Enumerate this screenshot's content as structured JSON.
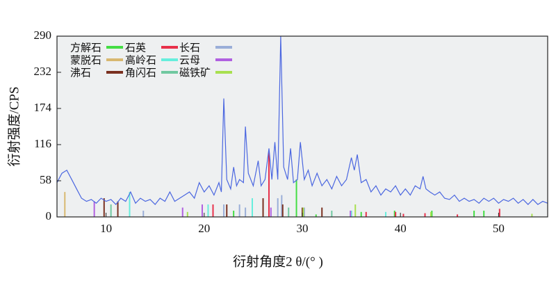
{
  "chart_data": {
    "type": "line",
    "x_label": "衍射角度2 θ/(° )",
    "y_label": "衍射强度/CPS",
    "xlim": [
      5,
      55
    ],
    "ylim": [
      0,
      290
    ],
    "xticks": [
      10,
      20,
      30,
      40,
      50
    ],
    "yticks": [
      0,
      58,
      116,
      174,
      232,
      290
    ],
    "line": {
      "color": "#4a66e0",
      "x": [
        5,
        5.5,
        6,
        6.5,
        7,
        7.5,
        8,
        8.5,
        9,
        9.5,
        10,
        10.5,
        11,
        11.5,
        12,
        12.5,
        13,
        13.5,
        14,
        14.5,
        15,
        15.5,
        16,
        16.5,
        17,
        17.5,
        18,
        18.5,
        19,
        19.5,
        20,
        20.5,
        21,
        21.5,
        21.75,
        22,
        22.3,
        22.7,
        23,
        23.3,
        23.6,
        24,
        24.2,
        24.5,
        25,
        25.5,
        25.8,
        26.2,
        26.6,
        26.9,
        27.2,
        27.5,
        27.8,
        28.1,
        28.5,
        28.8,
        29.1,
        29.5,
        29.8,
        30.2,
        30.6,
        31,
        31.5,
        32,
        32.5,
        33,
        33.5,
        34,
        34.5,
        35,
        35.3,
        35.6,
        36,
        36.5,
        37,
        37.5,
        38,
        38.5,
        39,
        39.5,
        40,
        40.5,
        41,
        41.5,
        42,
        42.3,
        42.6,
        43,
        43.5,
        44,
        44.5,
        45,
        45.5,
        46,
        46.5,
        47,
        47.5,
        48,
        48.5,
        49,
        49.5,
        50,
        50.5,
        51,
        51.5,
        52,
        52.5,
        53,
        53.5,
        54,
        54.5,
        55
      ],
      "values": [
        55,
        70,
        75,
        60,
        45,
        30,
        25,
        28,
        22,
        30,
        25,
        28,
        20,
        30,
        25,
        40,
        22,
        30,
        25,
        28,
        20,
        30,
        25,
        40,
        25,
        30,
        35,
        40,
        30,
        55,
        40,
        50,
        35,
        55,
        40,
        190,
        60,
        45,
        80,
        50,
        60,
        55,
        145,
        70,
        50,
        90,
        50,
        60,
        110,
        60,
        120,
        60,
        290,
        80,
        60,
        110,
        55,
        60,
        120,
        60,
        75,
        50,
        70,
        50,
        60,
        45,
        65,
        50,
        60,
        95,
        75,
        100,
        55,
        60,
        40,
        50,
        35,
        45,
        40,
        50,
        35,
        45,
        35,
        50,
        45,
        65,
        45,
        40,
        35,
        40,
        30,
        28,
        35,
        25,
        30,
        25,
        28,
        22,
        30,
        25,
        30,
        22,
        28,
        25,
        30,
        22,
        28,
        20,
        28,
        20,
        25,
        22
      ]
    },
    "series": [
      {
        "name": "方解石",
        "color": "#44dd44",
        "x": [
          23.0,
          29.4,
          31.4,
          36.0,
          39.4,
          43.2,
          47.5,
          48.5
        ],
        "values": [
          10,
          60,
          4,
          8,
          10,
          10,
          10,
          10
        ]
      },
      {
        "name": "石英",
        "color": "#e8304a",
        "x": [
          20.9,
          26.6,
          36.5,
          39.5,
          40.3,
          42.5,
          45.8,
          50.1
        ],
        "values": [
          20,
          105,
          8,
          8,
          5,
          6,
          4,
          13
        ]
      },
      {
        "name": "长石",
        "color": "#9aaed8",
        "x": [
          13.8,
          22.0,
          23.6,
          24.2,
          27.5,
          27.9,
          30.2
        ],
        "values": [
          10,
          20,
          20,
          15,
          30,
          35,
          15
        ]
      },
      {
        "name": "蒙脱石",
        "color": "#d8b870",
        "x": [
          5.8,
          19.8,
          35.0
        ],
        "values": [
          40,
          15,
          10
        ]
      },
      {
        "name": "高岭石",
        "color": "#66eedd",
        "x": [
          12.4,
          20.4,
          24.9,
          35.0,
          38.5
        ],
        "values": [
          40,
          20,
          30,
          10,
          8
        ]
      },
      {
        "name": "云母",
        "color": "#b060e0",
        "x": [
          8.8,
          17.8,
          19.8,
          26.8,
          34.9
        ],
        "values": [
          25,
          15,
          20,
          15,
          10
        ]
      },
      {
        "name": "沸石",
        "color": "#7a3020",
        "x": [
          9.8,
          11.2,
          22.3,
          26.0,
          28.0,
          30.0,
          32.0
        ],
        "values": [
          30,
          25,
          20,
          30,
          20,
          15,
          15
        ]
      },
      {
        "name": "角闪石",
        "color": "#70c8a0",
        "x": [
          10.5,
          28.6,
          33.0
        ],
        "values": [
          20,
          15,
          10
        ]
      },
      {
        "name": "磁铁矿",
        "color": "#a8e050",
        "x": [
          18.3,
          30.1,
          35.4,
          43.1,
          53.4
        ],
        "values": [
          8,
          15,
          20,
          8,
          5
        ]
      }
    ]
  }
}
